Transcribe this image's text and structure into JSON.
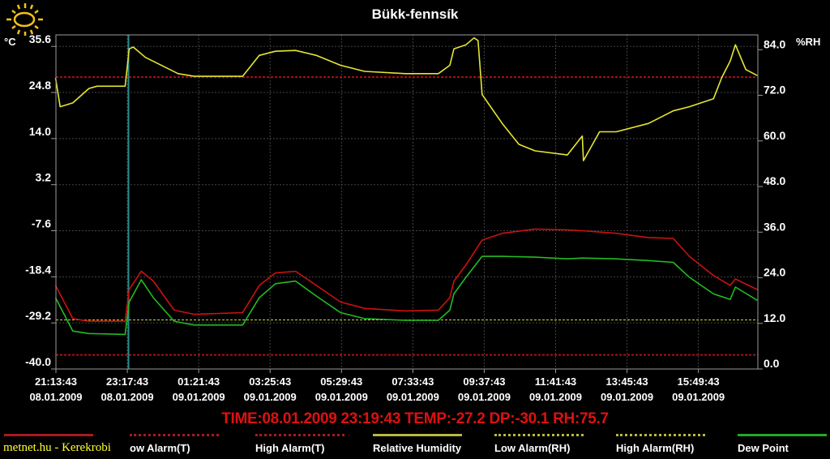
{
  "title": "Bükk-fennsík",
  "left_unit": "°C",
  "right_unit": "%RH",
  "readout": "TIME:08.01.2009 23:19:43   TEMP:-27.2  DP:-30.1  RH:75.7",
  "credit": "metnet.hu - Kerekrobi",
  "icon": "sun-icon",
  "colors": {
    "temperature": "#cc1111",
    "dew_point": "#22bb22",
    "humidity": "#e6e632",
    "alarm_t": "#aa1111",
    "alarm_rh": "#d0d040",
    "cursor": "#2a8a8a",
    "grid": "#444444",
    "frame": "#9a9a9a"
  },
  "legend": [
    {
      "label": "",
      "color": "#aa1a1a",
      "style": "solid"
    },
    {
      "label": "ow Alarm(T)",
      "color": "#aa1a1a",
      "style": "dotted"
    },
    {
      "label": "High Alarm(T)",
      "color": "#aa1a1a",
      "style": "dotted"
    },
    {
      "label": "Relative Humidity",
      "color": "#b8b840",
      "style": "solid"
    },
    {
      "label": "Low Alarm(RH)",
      "color": "#b8b840",
      "style": "dotted"
    },
    {
      "label": "High Alarm(RH)",
      "color": "#b8b840",
      "style": "dotted"
    },
    {
      "label": "Dew Point",
      "color": "#22aa22",
      "style": "solid"
    }
  ],
  "chart_data": {
    "type": "line",
    "title": "Bükk-fennsík",
    "grid": true,
    "legend_placement": "bottom",
    "x_range": [
      "08.01.2009 21:13:43",
      "09.01.2009 17:33:00"
    ],
    "x_ticks": [
      {
        "time": "21:13:43",
        "date": "08.01.2009"
      },
      {
        "time": "23:17:43",
        "date": "08.01.2009"
      },
      {
        "time": "01:21:43",
        "date": "09.01.2009"
      },
      {
        "time": "03:25:43",
        "date": "09.01.2009"
      },
      {
        "time": "05:29:43",
        "date": "09.01.2009"
      },
      {
        "time": "07:33:43",
        "date": "09.01.2009"
      },
      {
        "time": "09:37:43",
        "date": "09.01.2009"
      },
      {
        "time": "11:41:43",
        "date": "09.01.2009"
      },
      {
        "time": "13:45:43",
        "date": "09.01.2009"
      },
      {
        "time": "15:49:43",
        "date": "09.01.2009"
      }
    ],
    "y_left": {
      "label": "°C",
      "range": [
        -40.0,
        38.3
      ],
      "ticks": [
        "35.6",
        "24.8",
        "14.0",
        "3.2",
        "-7.6",
        "-18.4",
        "-29.2",
        "-40.0"
      ]
    },
    "y_right": {
      "label": "%RH",
      "range": [
        0,
        87.9
      ],
      "ticks": [
        "84.0",
        "72.0",
        "60.0",
        "48.0",
        "36.0",
        "24.0",
        "12.0",
        "0.0"
      ]
    },
    "cursor_time": "08.01.2009 23:19:43",
    "alarms": {
      "high_t": 28.4,
      "low_t": -36.7,
      "low_rh": 12.9
    },
    "t_times": [
      "08.01.2009 21:13",
      "08.01.2009 21:43",
      "08.01.2009 22:11",
      "08.01.2009 23:14",
      "08.01.2009 23:21",
      "08.01.2009 23:42",
      "09.01.2009 00:03",
      "09.01.2009 00:39",
      "09.01.2009 01:14",
      "09.01.2009 02:38",
      "09.01.2009 03:07",
      "09.01.2009 03:35",
      "09.01.2009 04:10",
      "09.01.2009 04:46",
      "09.01.2009 05:28",
      "09.01.2009 06:10",
      "09.01.2009 07:21",
      "09.01.2009 08:18",
      "09.01.2009 08:38",
      "09.01.2009 08:45",
      "09.01.2009 09:06",
      "09.01.2009 09:34",
      "09.01.2009 10:09",
      "09.01.2009 11:06",
      "09.01.2009 12:02",
      "09.01.2009 12:28",
      "09.01.2009 13:27",
      "09.01.2009 14:23",
      "09.01.2009 15:06",
      "09.01.2009 15:34",
      "09.01.2009 16:16",
      "09.01.2009 16:45",
      "09.01.2009 16:54",
      "09.01.2009 17:32"
    ],
    "series": [
      {
        "key": "temperature",
        "axis": "left",
        "values": [
          -20.4,
          -28.2,
          -28.8,
          -28.8,
          -21.4,
          -17.1,
          -19.4,
          -26.2,
          -27.2,
          -26.8,
          -20.4,
          -17.5,
          -17.1,
          -20.4,
          -24.3,
          -25.8,
          -26.4,
          -26.2,
          -23.3,
          -19.4,
          -15.6,
          -9.8,
          -8.2,
          -7.2,
          -7.4,
          -7.6,
          -8.2,
          -9.2,
          -9.4,
          -13.6,
          -18.1,
          -20.4,
          -18.9,
          -21.4
        ]
      },
      {
        "name": "Dew Point",
        "key": "dew_point",
        "axis": "left",
        "values": [
          -23.3,
          -31.1,
          -31.7,
          -31.9,
          -24.3,
          -19.1,
          -23.3,
          -28.8,
          -29.7,
          -29.7,
          -23.3,
          -20.0,
          -19.4,
          -22.9,
          -26.8,
          -28.2,
          -28.6,
          -28.6,
          -26.2,
          -22.4,
          -18.5,
          -13.6,
          -13.6,
          -13.8,
          -14.2,
          -14.0,
          -14.2,
          -14.6,
          -15.0,
          -18.5,
          -22.4,
          -23.7,
          -20.8,
          -23.9
        ]
      },
      {
        "name": "Relative Humidity",
        "key": "humidity",
        "axis": "right",
        "times": [
          "08.01.2009 21:13",
          "08.01.2009 21:21",
          "08.01.2009 21:43",
          "08.01.2009 22:11",
          "08.01.2009 22:25",
          "08.01.2009 23:14",
          "08.01.2009 23:21",
          "08.01.2009 23:28",
          "08.01.2009 23:49",
          "09.01.2009 00:46",
          "09.01.2009 01:14",
          "09.01.2009 02:38",
          "09.01.2009 03:07",
          "09.01.2009 03:35",
          "09.01.2009 04:10",
          "09.01.2009 04:46",
          "09.01.2009 05:28",
          "09.01.2009 06:10",
          "09.01.2009 07:21",
          "09.01.2009 08:18",
          "09.01.2009 08:38",
          "09.01.2009 08:45",
          "09.01.2009 09:06",
          "09.01.2009 09:20",
          "09.01.2009 09:27",
          "09.01.2009 09:34",
          "09.01.2009 10:09",
          "09.01.2009 10:38",
          "09.01.2009 11:06",
          "09.01.2009 12:02",
          "09.01.2009 12:28",
          "09.01.2009 12:30",
          "09.01.2009 12:58",
          "09.01.2009 13:27",
          "09.01.2009 14:23",
          "09.01.2009 15:06",
          "09.01.2009 15:34",
          "09.01.2009 16:16",
          "09.01.2009 16:30",
          "09.01.2009 16:45",
          "09.01.2009 16:54",
          "09.01.2009 17:12",
          "09.01.2009 17:32"
        ],
        "values": [
          76.6,
          69.0,
          70.0,
          73.8,
          74.4,
          74.4,
          84.2,
          84.7,
          82.0,
          77.7,
          77.0,
          77.0,
          82.5,
          83.6,
          83.8,
          82.5,
          79.9,
          78.3,
          77.7,
          77.7,
          79.9,
          84.2,
          85.3,
          87.1,
          86.4,
          72.2,
          64.6,
          59.1,
          57.4,
          56.3,
          61.3,
          54.8,
          62.4,
          62.4,
          64.6,
          67.9,
          69.0,
          71.1,
          76.6,
          81.0,
          85.3,
          78.8,
          77.2
        ]
      }
    ]
  }
}
